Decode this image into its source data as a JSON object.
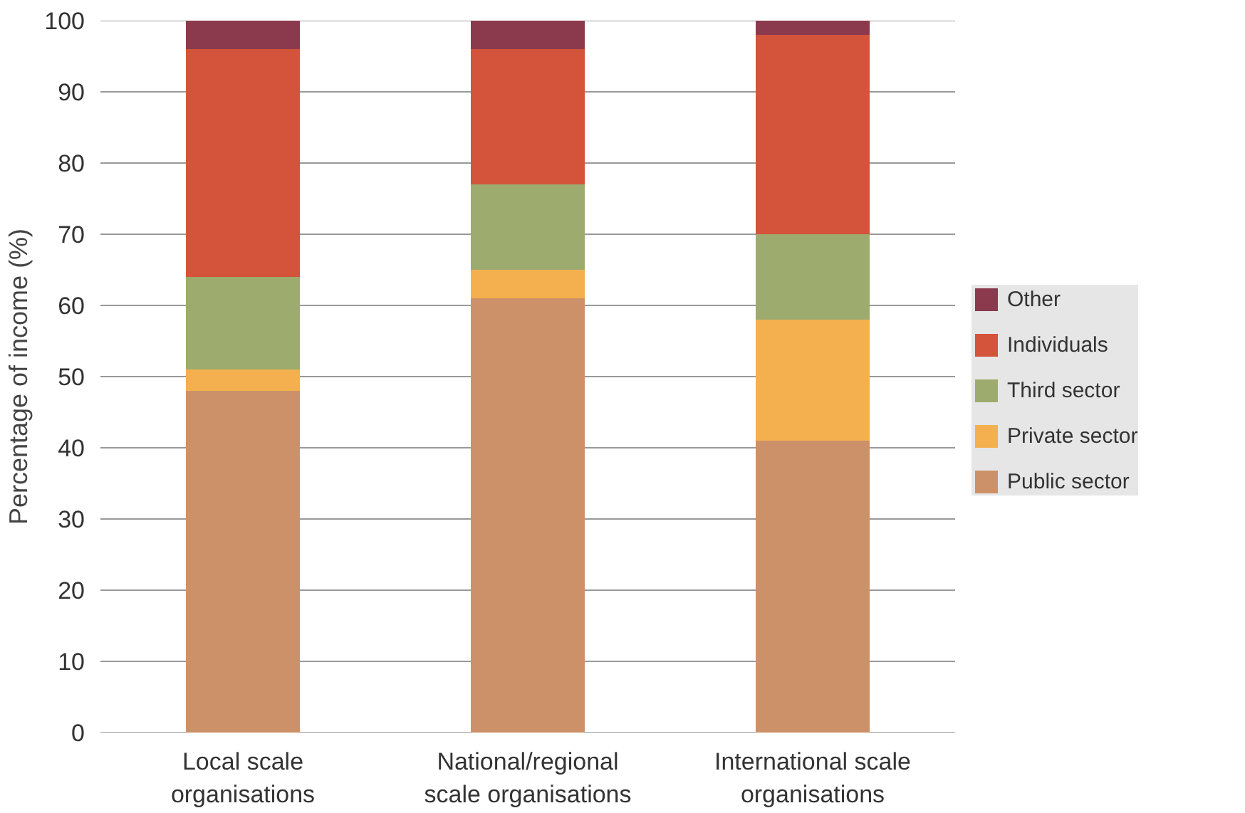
{
  "chart_data": {
    "type": "bar",
    "stacked": true,
    "ylabel": "Percentage of income (%)",
    "categories": [
      "Local scale organisations",
      "National/regional scale organisations",
      "International scale organisations"
    ],
    "series": [
      {
        "name": "Public sector",
        "color": "#cc9169",
        "values": [
          48,
          61,
          41
        ]
      },
      {
        "name": "Private sector",
        "color": "#f4b04f",
        "values": [
          3,
          4,
          17
        ]
      },
      {
        "name": "Third sector",
        "color": "#9dab6e",
        "values": [
          13,
          12,
          12
        ]
      },
      {
        "name": "Individuals",
        "color": "#d4533b",
        "values": [
          32,
          19,
          28
        ]
      },
      {
        "name": "Other",
        "color": "#8b3a4e",
        "values": [
          4,
          4,
          2
        ]
      }
    ],
    "ylim": [
      0,
      100
    ],
    "yticks": [
      0,
      10,
      20,
      30,
      40,
      50,
      60,
      70,
      80,
      90,
      100
    ],
    "grid": "y",
    "legend": "right"
  }
}
